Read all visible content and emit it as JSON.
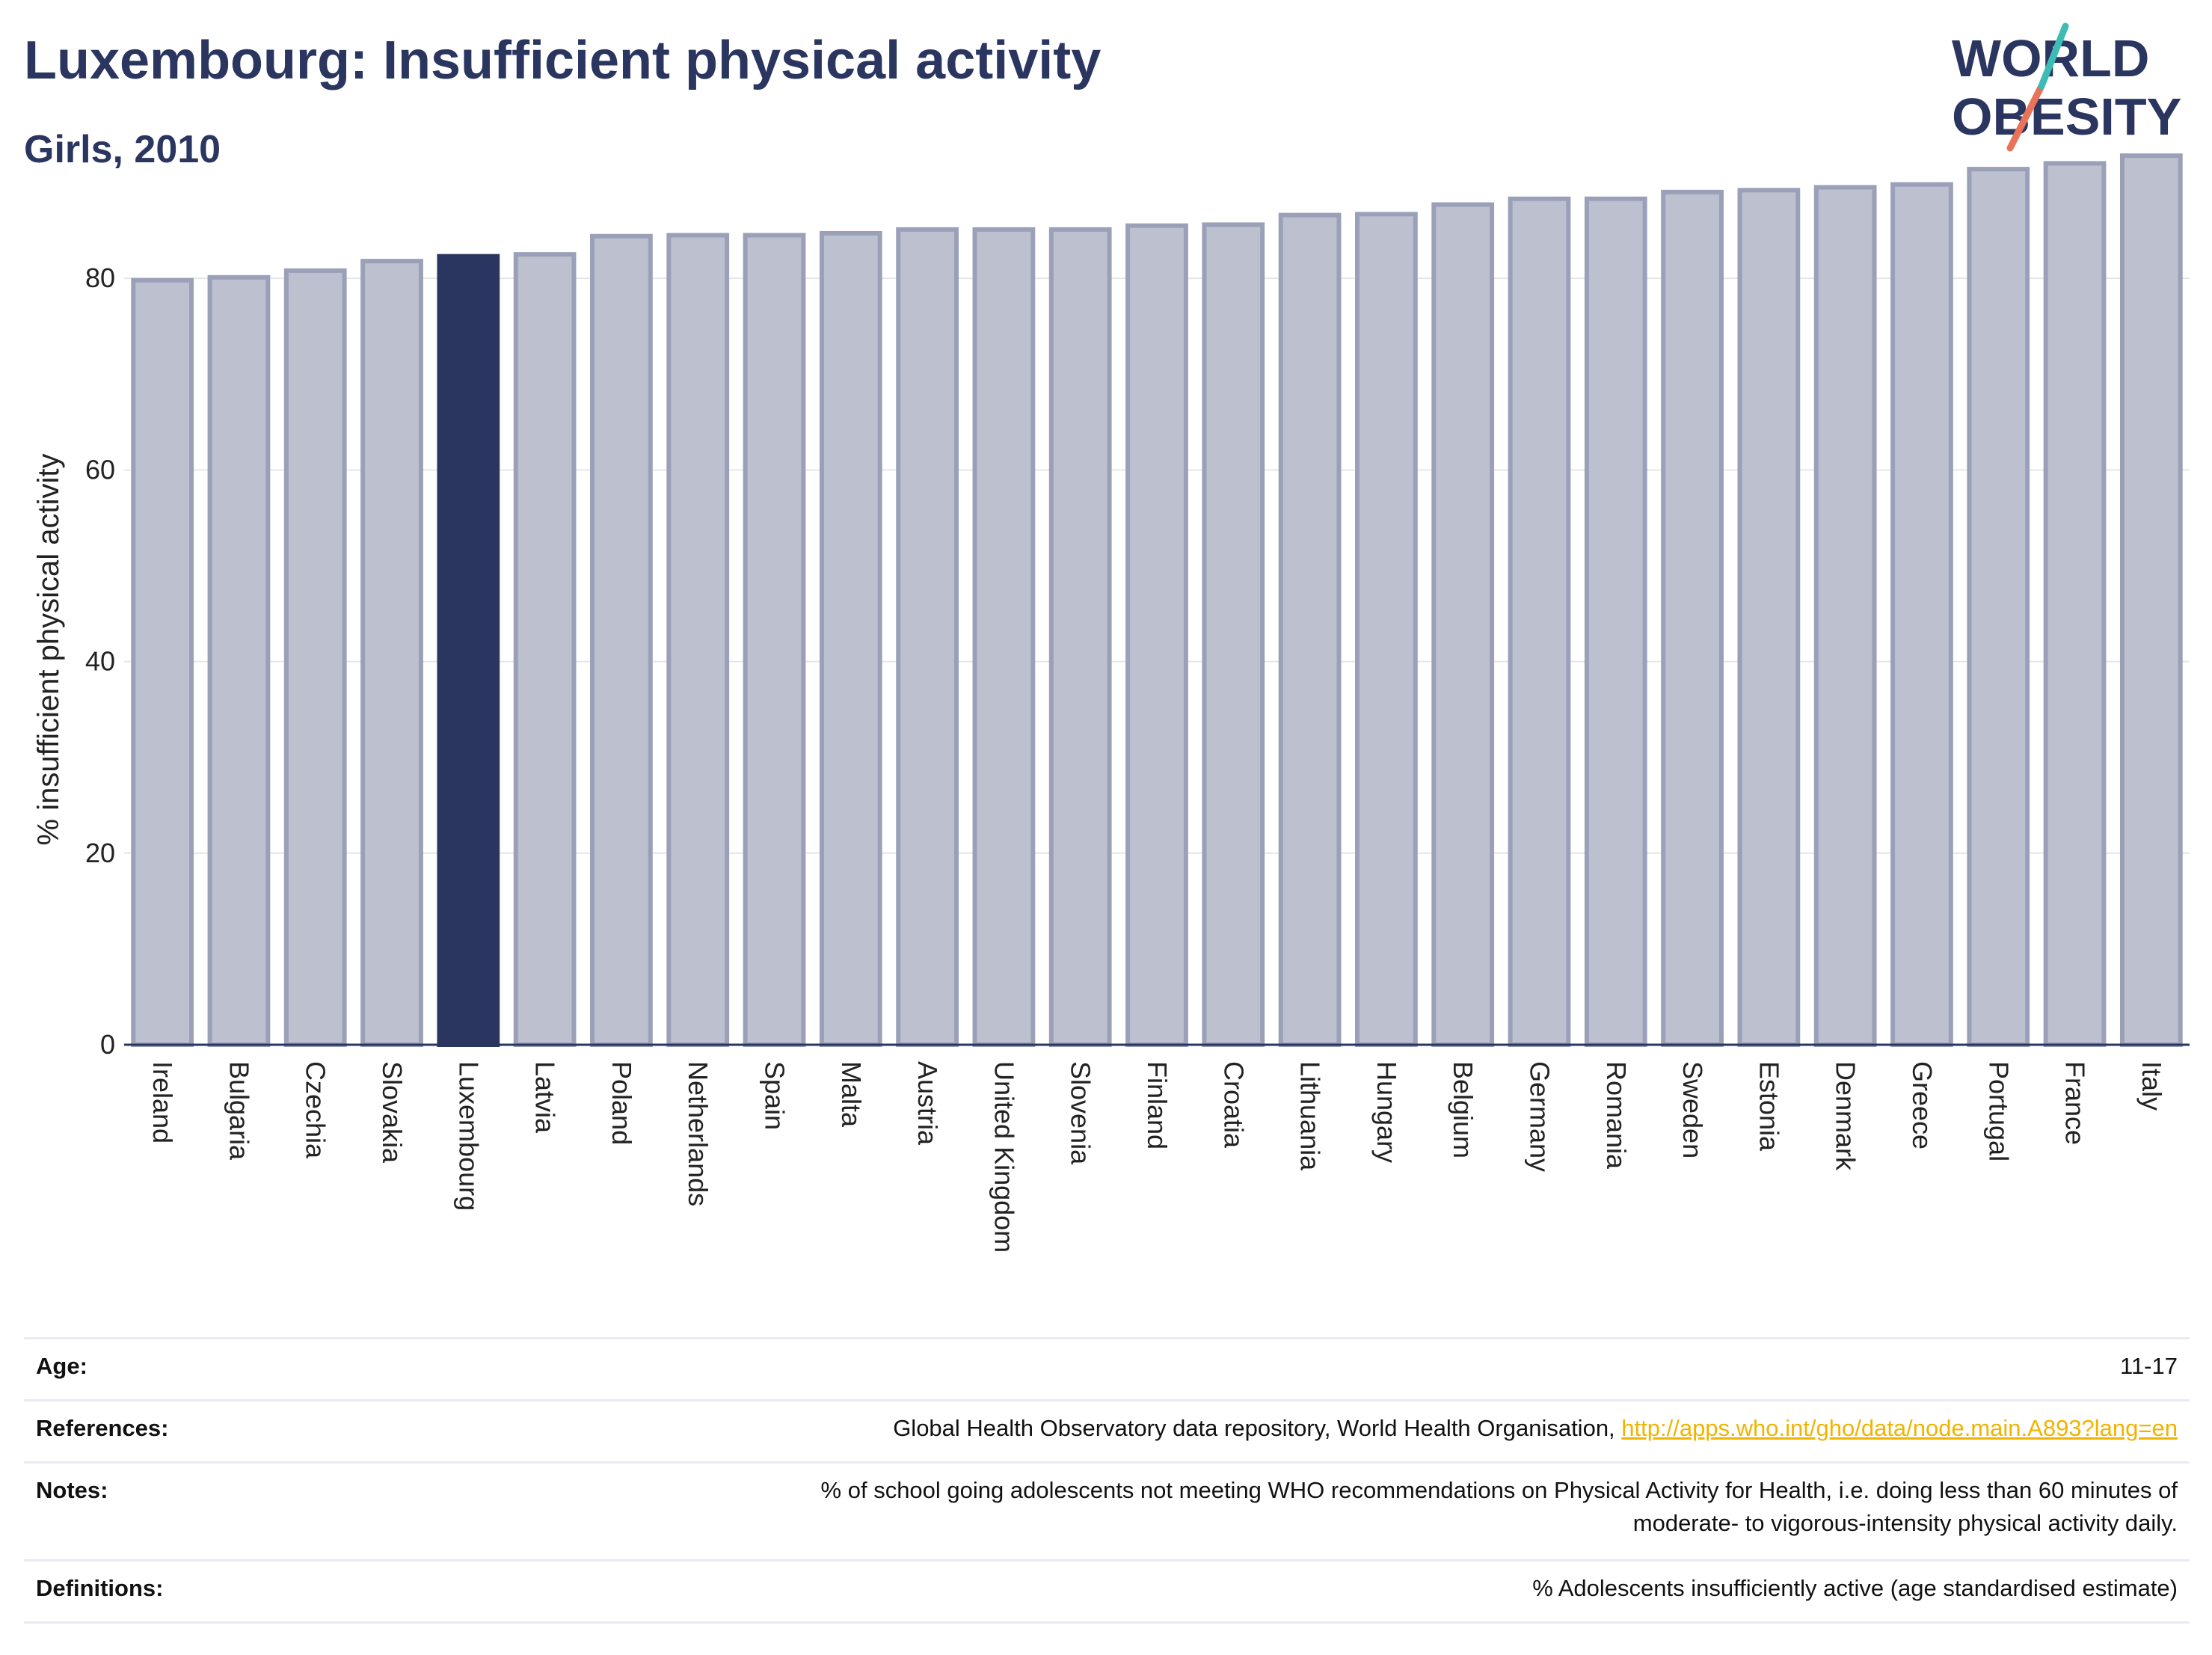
{
  "header": {
    "title": "Luxembourg: Insufficient physical activity",
    "subtitle": "Girls, 2010"
  },
  "logo": {
    "line1": "WORLD",
    "line2": "OBESITY",
    "accent_teal": "#3cbcb4",
    "accent_coral": "#e8735a"
  },
  "colors": {
    "bar": "#bcc0cf",
    "bar_border": "#9aa0b8",
    "highlight": "#2a3560",
    "grid": "#e6e6e6",
    "text": "#2a3560"
  },
  "chart_data": {
    "type": "bar",
    "ylabel": "% insufficient physical activity",
    "ylim": [
      0,
      95
    ],
    "yticks": [
      0,
      20,
      40,
      60,
      80
    ],
    "grid": true,
    "highlight": "Luxembourg",
    "categories": [
      "Ireland",
      "Bulgaria",
      "Czechia",
      "Slovakia",
      "Luxembourg",
      "Latvia",
      "Poland",
      "Netherlands",
      "Spain",
      "Malta",
      "Austria",
      "United Kingdom",
      "Slovenia",
      "Finland",
      "Croatia",
      "Lithuania",
      "Hungary",
      "Belgium",
      "Germany",
      "Romania",
      "Sweden",
      "Estonia",
      "Denmark",
      "Greece",
      "Portugal",
      "France",
      "Italy"
    ],
    "values": [
      79.8,
      80.1,
      80.8,
      81.8,
      82.3,
      82.5,
      84.4,
      84.5,
      84.5,
      84.7,
      85.1,
      85.1,
      85.1,
      85.5,
      85.6,
      86.6,
      86.7,
      87.7,
      88.3,
      88.3,
      89.0,
      89.2,
      89.5,
      89.8,
      91.4,
      92.0,
      92.8
    ]
  },
  "info": {
    "age_label": "Age:",
    "age_value": "11-17",
    "references_label": "References:",
    "references_text": "Global Health Observatory data repository, World Health Organisation, ",
    "references_link": "http://apps.who.int/gho/data/node.main.A893?lang=en",
    "notes_label": "Notes:",
    "notes_line1": "% of school going adolescents not meeting WHO recommendations on Physical Activity for Health, i.e. doing less than 60 minutes of",
    "notes_line2": "moderate- to vigorous-intensity physical activity daily.",
    "definitions_label": "Definitions:",
    "definitions_value": "% Adolescents insufficiently active (age standardised estimate)"
  }
}
